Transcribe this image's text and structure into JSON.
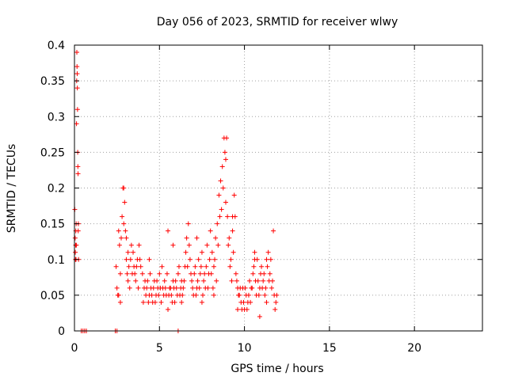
{
  "chart_data": {
    "type": "scatter",
    "title": "Day 056 of 2023, SRMTID for receiver wlwy",
    "xlabel": "GPS time / hours",
    "ylabel": "SRMTID / TECUs",
    "xlim": [
      0,
      24
    ],
    "ylim": [
      0,
      0.4
    ],
    "xticks": [
      0,
      5,
      10,
      15,
      20
    ],
    "yticks": [
      0,
      0.05,
      0.1,
      0.15,
      0.2,
      0.25,
      0.3,
      0.35,
      0.4
    ],
    "ytick_labels": [
      "0",
      "0.05",
      "0.1",
      "0.15",
      "0.2",
      "0.25",
      "0.3",
      "0.35",
      "0.4"
    ],
    "grid": true,
    "legend": "none",
    "marker": "plus",
    "color": "#ff0000",
    "points": [
      [
        0.02,
        0.17
      ],
      [
        0.04,
        0.13
      ],
      [
        0.05,
        0.11
      ],
      [
        0.06,
        0.1
      ],
      [
        0.07,
        0.12
      ],
      [
        0.08,
        0.14
      ],
      [
        0.09,
        0.1
      ],
      [
        0.1,
        0.15
      ],
      [
        0.11,
        0.12
      ],
      [
        0.12,
        0.29
      ],
      [
        0.13,
        0.35
      ],
      [
        0.14,
        0.39
      ],
      [
        0.15,
        0.37
      ],
      [
        0.16,
        0.36
      ],
      [
        0.17,
        0.34
      ],
      [
        0.18,
        0.31
      ],
      [
        0.19,
        0.25
      ],
      [
        0.2,
        0.23
      ],
      [
        0.21,
        0.22
      ],
      [
        0.22,
        0.14
      ],
      [
        0.23,
        0.15
      ],
      [
        0.24,
        0.1
      ],
      [
        0.4,
        0.0
      ],
      [
        0.5,
        0.0
      ],
      [
        0.6,
        0.0
      ],
      [
        0.7,
        0.0
      ],
      [
        2.4,
        0.0
      ],
      [
        2.5,
        0.0
      ],
      [
        6.1,
        0.0
      ],
      [
        2.45,
        0.09
      ],
      [
        2.5,
        0.06
      ],
      [
        2.55,
        0.05
      ],
      [
        2.6,
        0.14
      ],
      [
        2.65,
        0.12
      ],
      [
        2.7,
        0.04
      ],
      [
        2.75,
        0.13
      ],
      [
        2.8,
        0.16
      ],
      [
        2.85,
        0.2
      ],
      [
        2.9,
        0.2
      ],
      [
        2.95,
        0.18
      ],
      [
        3.0,
        0.14
      ],
      [
        3.05,
        0.1
      ],
      [
        3.1,
        0.08
      ],
      [
        3.15,
        0.07
      ],
      [
        3.2,
        0.09
      ],
      [
        3.3,
        0.1
      ],
      [
        3.4,
        0.08
      ],
      [
        3.5,
        0.09
      ],
      [
        3.6,
        0.07
      ],
      [
        3.7,
        0.1
      ],
      [
        3.8,
        0.12
      ],
      [
        3.9,
        0.09
      ],
      [
        4.0,
        0.08
      ],
      [
        4.1,
        0.06
      ],
      [
        4.2,
        0.05
      ],
      [
        4.3,
        0.07
      ],
      [
        4.4,
        0.05
      ],
      [
        4.5,
        0.06
      ],
      [
        4.6,
        0.04
      ],
      [
        4.7,
        0.07
      ],
      [
        4.8,
        0.05
      ],
      [
        4.9,
        0.06
      ],
      [
        5.0,
        0.08
      ],
      [
        5.1,
        0.04
      ],
      [
        5.2,
        0.06
      ],
      [
        5.3,
        0.07
      ],
      [
        5.4,
        0.05
      ],
      [
        5.5,
        0.14
      ],
      [
        5.6,
        0.06
      ],
      [
        5.7,
        0.05
      ],
      [
        5.8,
        0.07
      ],
      [
        5.9,
        0.04
      ],
      [
        6.0,
        0.06
      ],
      [
        6.1,
        0.08
      ],
      [
        6.2,
        0.05
      ],
      [
        6.3,
        0.07
      ],
      [
        6.4,
        0.06
      ],
      [
        6.5,
        0.09
      ],
      [
        6.6,
        0.13
      ],
      [
        6.7,
        0.15
      ],
      [
        6.8,
        0.1
      ],
      [
        6.9,
        0.07
      ],
      [
        7.0,
        0.05
      ],
      [
        7.1,
        0.09
      ],
      [
        7.2,
        0.06
      ],
      [
        7.3,
        0.1
      ],
      [
        7.4,
        0.08
      ],
      [
        7.5,
        0.11
      ],
      [
        7.6,
        0.07
      ],
      [
        7.7,
        0.06
      ],
      [
        7.8,
        0.12
      ],
      [
        7.9,
        0.08
      ],
      [
        8.0,
        0.14
      ],
      [
        8.1,
        0.11
      ],
      [
        8.2,
        0.09
      ],
      [
        8.3,
        0.13
      ],
      [
        8.4,
        0.15
      ],
      [
        8.5,
        0.19
      ],
      [
        8.6,
        0.21
      ],
      [
        8.7,
        0.23
      ],
      [
        8.8,
        0.27
      ],
      [
        8.85,
        0.25
      ],
      [
        8.9,
        0.24
      ],
      [
        8.95,
        0.27
      ],
      [
        9.0,
        0.16
      ],
      [
        9.1,
        0.13
      ],
      [
        9.2,
        0.1
      ],
      [
        9.3,
        0.14
      ],
      [
        9.4,
        0.19
      ],
      [
        9.5,
        0.08
      ],
      [
        9.6,
        0.06
      ],
      [
        9.7,
        0.05
      ],
      [
        9.8,
        0.04
      ],
      [
        9.9,
        0.06
      ],
      [
        10.0,
        0.03
      ],
      [
        10.1,
        0.05
      ],
      [
        10.2,
        0.04
      ],
      [
        10.3,
        0.07
      ],
      [
        10.4,
        0.06
      ],
      [
        10.5,
        0.08
      ],
      [
        10.6,
        0.11
      ],
      [
        10.7,
        0.05
      ],
      [
        10.8,
        0.07
      ],
      [
        10.9,
        0.06
      ],
      [
        11.0,
        0.09
      ],
      [
        11.1,
        0.07
      ],
      [
        11.2,
        0.05
      ],
      [
        11.3,
        0.1
      ],
      [
        11.4,
        0.11
      ],
      [
        11.5,
        0.08
      ],
      [
        11.6,
        0.06
      ],
      [
        11.7,
        0.14
      ],
      [
        11.75,
        0.05
      ],
      [
        11.8,
        0.03
      ],
      [
        11.85,
        0.04
      ],
      [
        11.9,
        0.05
      ],
      [
        3.25,
        0.06
      ],
      [
        3.35,
        0.12
      ],
      [
        3.45,
        0.11
      ],
      [
        3.55,
        0.08
      ],
      [
        3.65,
        0.09
      ],
      [
        3.75,
        0.06
      ],
      [
        3.85,
        0.1
      ],
      [
        4.05,
        0.04
      ],
      [
        4.15,
        0.07
      ],
      [
        4.25,
        0.06
      ],
      [
        4.35,
        0.04
      ],
      [
        4.45,
        0.08
      ],
      [
        4.55,
        0.05
      ],
      [
        4.65,
        0.06
      ],
      [
        4.75,
        0.04
      ],
      [
        4.85,
        0.07
      ],
      [
        4.95,
        0.05
      ],
      [
        5.05,
        0.06
      ],
      [
        5.15,
        0.09
      ],
      [
        5.25,
        0.05
      ],
      [
        5.35,
        0.06
      ],
      [
        5.45,
        0.08
      ],
      [
        5.55,
        0.05
      ],
      [
        5.65,
        0.06
      ],
      [
        5.75,
        0.04
      ],
      [
        5.85,
        0.06
      ],
      [
        5.95,
        0.07
      ],
      [
        6.05,
        0.05
      ],
      [
        6.15,
        0.09
      ],
      [
        6.25,
        0.06
      ],
      [
        6.35,
        0.05
      ],
      [
        6.45,
        0.07
      ],
      [
        6.55,
        0.11
      ],
      [
        6.65,
        0.09
      ],
      [
        6.75,
        0.12
      ],
      [
        6.85,
        0.08
      ],
      [
        6.95,
        0.06
      ],
      [
        7.05,
        0.08
      ],
      [
        7.15,
        0.05
      ],
      [
        7.25,
        0.07
      ],
      [
        7.35,
        0.06
      ],
      [
        7.45,
        0.09
      ],
      [
        7.55,
        0.05
      ],
      [
        7.65,
        0.08
      ],
      [
        7.75,
        0.09
      ],
      [
        7.85,
        0.06
      ],
      [
        7.95,
        0.1
      ],
      [
        8.05,
        0.08
      ],
      [
        8.15,
        0.06
      ],
      [
        8.25,
        0.1
      ],
      [
        8.35,
        0.07
      ],
      [
        8.45,
        0.12
      ],
      [
        8.55,
        0.16
      ],
      [
        8.65,
        0.17
      ],
      [
        8.75,
        0.2
      ],
      [
        9.05,
        0.12
      ],
      [
        9.15,
        0.09
      ],
      [
        9.25,
        0.07
      ],
      [
        9.35,
        0.11
      ],
      [
        9.45,
        0.16
      ],
      [
        9.55,
        0.07
      ],
      [
        9.65,
        0.05
      ],
      [
        9.75,
        0.06
      ],
      [
        9.85,
        0.03
      ],
      [
        9.95,
        0.04
      ],
      [
        10.05,
        0.06
      ],
      [
        10.15,
        0.03
      ],
      [
        10.25,
        0.05
      ],
      [
        10.35,
        0.04
      ],
      [
        10.45,
        0.06
      ],
      [
        10.55,
        0.09
      ],
      [
        10.65,
        0.07
      ],
      [
        10.75,
        0.1
      ],
      [
        10.85,
        0.05
      ],
      [
        10.95,
        0.08
      ],
      [
        11.05,
        0.06
      ],
      [
        11.15,
        0.08
      ],
      [
        11.25,
        0.06
      ],
      [
        11.35,
        0.09
      ],
      [
        11.45,
        0.07
      ],
      [
        11.55,
        0.1
      ],
      [
        11.65,
        0.07
      ],
      [
        3.05,
        0.13
      ],
      [
        3.15,
        0.11
      ],
      [
        2.9,
        0.15
      ],
      [
        2.7,
        0.08
      ],
      [
        2.6,
        0.05
      ],
      [
        5.5,
        0.03
      ],
      [
        6.3,
        0.04
      ],
      [
        7.5,
        0.04
      ],
      [
        8.2,
        0.05
      ],
      [
        9.6,
        0.03
      ],
      [
        10.9,
        0.02
      ],
      [
        11.3,
        0.04
      ],
      [
        4.4,
        0.1
      ],
      [
        5.8,
        0.12
      ],
      [
        7.2,
        0.13
      ],
      [
        8.9,
        0.18
      ],
      [
        9.3,
        0.16
      ],
      [
        10.6,
        0.1
      ]
    ]
  }
}
